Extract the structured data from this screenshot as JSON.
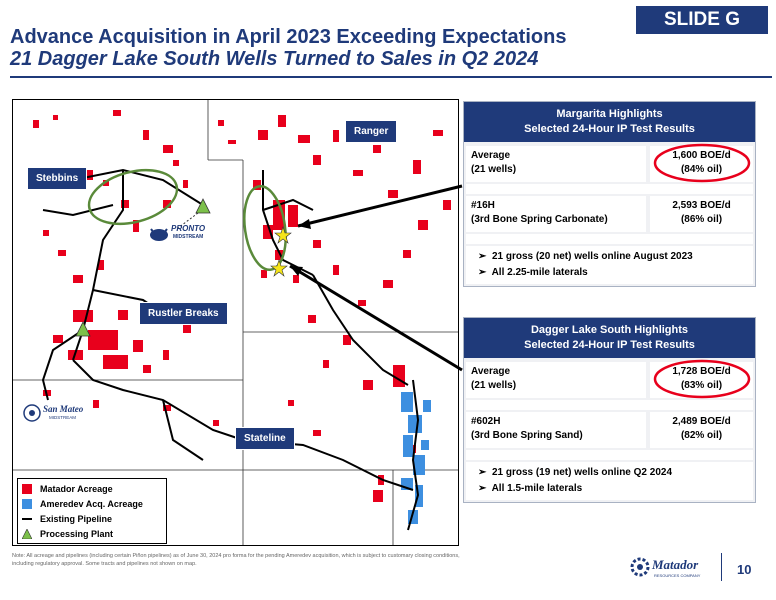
{
  "header": {
    "title": "Advance Acquisition in April 2023 Exceeding Expectations",
    "subtitle": "21 Dagger Lake South Wells Turned to Sales in Q2 2024",
    "badge": "SLIDE G"
  },
  "map": {
    "labels": {
      "ranger": "Ranger",
      "stebbins": "Stebbins",
      "rustler": "Rustler Breaks",
      "stateline": "Stateline"
    },
    "logos": {
      "pronto": "PRONTO",
      "pronto_sub": "MIDSTREAM",
      "sanmateo": "San Mateo",
      "sanmateo_sub": "MIDSTREAM"
    },
    "legend": {
      "matador": "Matador Acreage",
      "ameredev": "Ameredev Acq. Acreage",
      "pipeline": "Existing Pipeline",
      "plant": "Processing Plant"
    },
    "colors": {
      "matador": "#e8001c",
      "ameredev": "#3d8fe0",
      "plant": "#7cc04a",
      "highlight": "#5a8a3a",
      "star": "#f5e51a"
    }
  },
  "margarita": {
    "title_line1": "Margarita Highlights",
    "title_line2": "Selected 24-Hour IP Test Results",
    "row1_label1": "Average",
    "row1_label2": "(21 wells)",
    "row1_value1": "1,600 BOE/d",
    "row1_value2": "(84% oil)",
    "row2_label1": "#16H",
    "row2_label2": "(3rd Bone Spring Carbonate)",
    "row2_value1": "2,593 BOE/d",
    "row2_value2": "(86% oil)",
    "bullet1": "21 gross (20 net) wells online August 2023",
    "bullet2": "All 2.25-mile laterals"
  },
  "dagger": {
    "title_line1": "Dagger Lake South Highlights",
    "title_line2": "Selected 24-Hour IP Test Results",
    "row1_label1": "Average",
    "row1_label2": "(21 wells)",
    "row1_value1": "1,728 BOE/d",
    "row1_value2": "(83% oil)",
    "row2_label1": "#602H",
    "row2_label2": "(3rd Bone Spring Sand)",
    "row2_value1": "2,489 BOE/d",
    "row2_value2": "(82% oil)",
    "bullet1": "21 gross (19 net) wells online Q2 2024",
    "bullet2": "All 1.5-mile laterals"
  },
  "footer": {
    "note": "Note: All acreage and pipelines (including certain Piñon pipelines) as of June 30, 2024 pro forma for the pending Ameredev acquisition, which is subject to customary closing conditions, including regulatory approval. Some tracts and pipelines not shown on map.",
    "company": "Matador",
    "company_sub": "RESOURCES COMPANY",
    "page": "10"
  }
}
